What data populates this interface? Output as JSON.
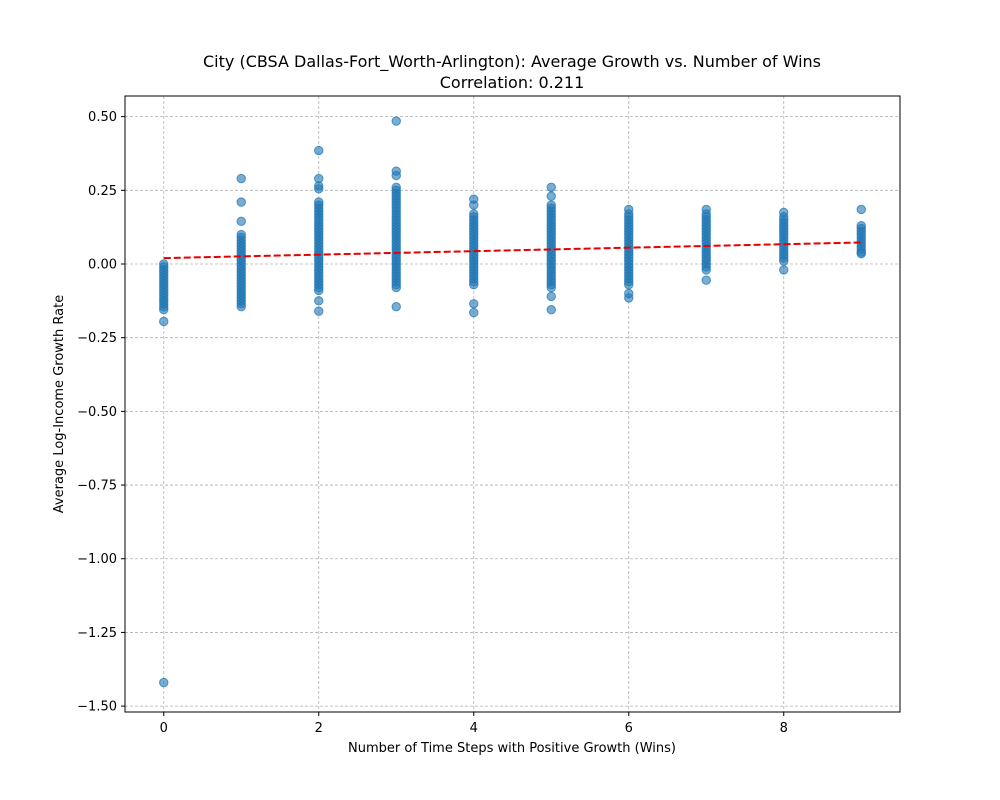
{
  "chart_data": {
    "type": "scatter",
    "title": "City (CBSA Dallas-Fort_Worth-Arlington): Average Growth vs. Number of Wins",
    "subtitle": "Correlation: 0.211",
    "xlabel": "Number of Time Steps with Positive Growth (Wins)",
    "ylabel": "Average Log-Income Growth Rate",
    "xlim": [
      -0.5,
      9.5
    ],
    "ylim": [
      -1.52,
      0.57
    ],
    "xticks": [
      0,
      2,
      4,
      6,
      8
    ],
    "xtick_labels": [
      "0",
      "2",
      "4",
      "6",
      "8"
    ],
    "yticks": [
      0.5,
      0.25,
      0.0,
      -0.25,
      -0.5,
      -0.75,
      -1.0,
      -1.25,
      -1.5
    ],
    "ytick_labels": [
      "0.50",
      "0.25",
      "0.00",
      "−0.25",
      "−0.50",
      "−0.75",
      "−1.00",
      "−1.25",
      "−1.50"
    ],
    "grid": true,
    "colors": {
      "points": "#1f77b4",
      "trend": "#e60000"
    },
    "point_ranges": [
      {
        "x": 0,
        "y_min": -0.155,
        "y_max": 0.0
      },
      {
        "x": 1,
        "y_min": -0.145,
        "y_max": 0.1
      },
      {
        "x": 2,
        "y_min": -0.09,
        "y_max": 0.21
      },
      {
        "x": 3,
        "y_min": -0.08,
        "y_max": 0.26
      },
      {
        "x": 4,
        "y_min": -0.07,
        "y_max": 0.17
      },
      {
        "x": 5,
        "y_min": -0.08,
        "y_max": 0.2
      },
      {
        "x": 6,
        "y_min": -0.07,
        "y_max": 0.17
      },
      {
        "x": 7,
        "y_min": -0.02,
        "y_max": 0.17
      },
      {
        "x": 8,
        "y_min": 0.01,
        "y_max": 0.16
      },
      {
        "x": 9,
        "y_min": 0.04,
        "y_max": 0.13
      }
    ],
    "outliers": [
      {
        "x": 0,
        "y": -1.42
      },
      {
        "x": 0,
        "y": -0.195
      },
      {
        "x": 1,
        "y": 0.29
      },
      {
        "x": 1,
        "y": 0.21
      },
      {
        "x": 1,
        "y": 0.145
      },
      {
        "x": 2,
        "y": 0.385
      },
      {
        "x": 2,
        "y": 0.29
      },
      {
        "x": 2,
        "y": 0.265
      },
      {
        "x": 2,
        "y": 0.255
      },
      {
        "x": 2,
        "y": -0.125
      },
      {
        "x": 2,
        "y": -0.16
      },
      {
        "x": 3,
        "y": 0.485
      },
      {
        "x": 3,
        "y": 0.315
      },
      {
        "x": 3,
        "y": 0.3
      },
      {
        "x": 3,
        "y": -0.145
      },
      {
        "x": 4,
        "y": 0.22
      },
      {
        "x": 4,
        "y": 0.2
      },
      {
        "x": 4,
        "y": -0.135
      },
      {
        "x": 4,
        "y": -0.165
      },
      {
        "x": 5,
        "y": 0.26
      },
      {
        "x": 5,
        "y": 0.23
      },
      {
        "x": 5,
        "y": -0.11
      },
      {
        "x": 5,
        "y": -0.155
      },
      {
        "x": 6,
        "y": 0.185
      },
      {
        "x": 6,
        "y": -0.1
      },
      {
        "x": 6,
        "y": -0.115
      },
      {
        "x": 7,
        "y": 0.185
      },
      {
        "x": 7,
        "y": -0.055
      },
      {
        "x": 8,
        "y": 0.175
      },
      {
        "x": 8,
        "y": -0.02
      },
      {
        "x": 9,
        "y": 0.185
      },
      {
        "x": 9,
        "y": 0.035
      }
    ],
    "trend_line": {
      "x": [
        0,
        9
      ],
      "y": [
        0.02,
        0.073
      ]
    }
  }
}
